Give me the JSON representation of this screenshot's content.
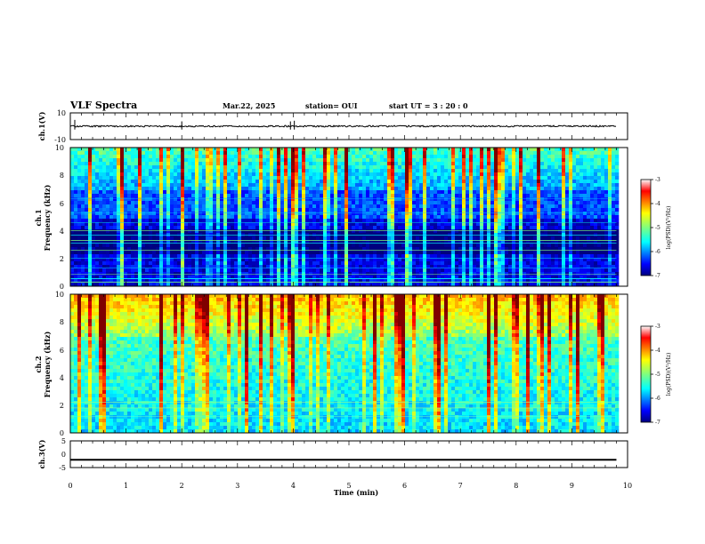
{
  "header": {
    "title": "VLF Spectra",
    "date": "Mar.22, 2025",
    "station": "station= OUI",
    "start_ut": "start  UT =   3 : 20 : 0"
  },
  "chart_data": [
    {
      "type": "line",
      "panel": "ch1-waveform",
      "ylabel": "ch.1(V)",
      "ylim": [
        -10,
        10
      ],
      "yticks": [
        "10",
        "-10"
      ],
      "xlim": [
        0,
        10
      ],
      "series": [
        {
          "baseline": 0,
          "noise_amplitude": 0.6,
          "spikes_at_min": [
            0.08,
            2.0,
            3.95,
            4.02
          ]
        }
      ]
    },
    {
      "type": "heatmap",
      "panel": "ch1-spectrogram",
      "ylabel": "ch.1\nFrequency  (kHz)",
      "ylim": [
        0,
        10
      ],
      "yticks": [
        "0",
        "2",
        "4",
        "6",
        "8",
        "10"
      ],
      "xlim": [
        0,
        9.8
      ],
      "colorbar": {
        "label": "log(PSD)(V²/Hz)",
        "range": [
          -7,
          -3
        ],
        "ticks": [
          "-3",
          "-4",
          "-5",
          "-6",
          "-7"
        ]
      },
      "features": "Broadband impulsive sferics reaching 8-10 kHz; strong horizontal narrowband lines between 0.2 and 4.6 kHz; low-intensity band 2.4-4 kHz; brief enhancement near 8.8 min around 2 kHz"
    },
    {
      "type": "heatmap",
      "panel": "ch2-spectrogram",
      "ylabel": "ch.2\nFrequency  (kHz)",
      "ylim": [
        0,
        10
      ],
      "yticks": [
        "0",
        "2",
        "4",
        "6",
        "8",
        "10"
      ],
      "xlim": [
        0,
        9.8
      ],
      "colorbar": {
        "label": "log(PSD)(V²/Hz)",
        "range": [
          -7,
          -3
        ],
        "ticks": [
          "-3",
          "-4",
          "-5",
          "-6",
          "-7"
        ]
      },
      "features": "Higher overall intensity; yellow/red emissions at 7-10 kHz; strong vertical events near 4.0 and 6.0 min; weak horizontal lines near 1.8 and 2.2 kHz"
    },
    {
      "type": "line",
      "panel": "ch3-waveform",
      "ylabel": "ch.3(V)",
      "ylim": [
        -5,
        5
      ],
      "yticks": [
        "5",
        "0",
        "-5"
      ],
      "xlim": [
        0,
        10
      ],
      "xlabel": "Time  (min)",
      "xticks": [
        "0",
        "1",
        "2",
        "3",
        "4",
        "5",
        "6",
        "7",
        "8",
        "9",
        "10"
      ],
      "series": [
        {
          "baseline": -2,
          "thickness_v": 0.5
        }
      ]
    }
  ]
}
